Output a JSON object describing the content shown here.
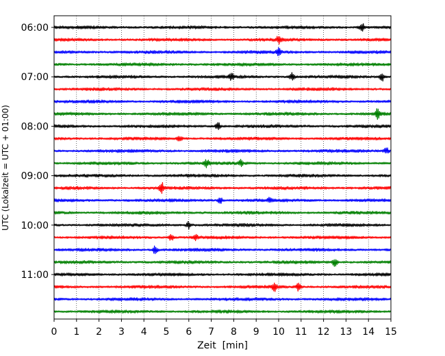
{
  "chart_data": {
    "type": "line",
    "title": "",
    "xlabel": "Zeit  [min]",
    "ylabel": "UTC (Lokalzeit = UTC + 01:00)",
    "xlim": [
      0,
      15
    ],
    "xticks": [
      0,
      1,
      2,
      3,
      4,
      5,
      6,
      7,
      8,
      9,
      10,
      11,
      12,
      13,
      14,
      15
    ],
    "xtick_labels": [
      "0",
      "1",
      "2",
      "3",
      "4",
      "5",
      "6",
      "7",
      "8",
      "9",
      "10",
      "11",
      "12",
      "13",
      "14",
      "15"
    ],
    "ytick_labels": [
      "06:00",
      "07:00",
      "08:00",
      "09:00",
      "10:00",
      "11:00"
    ],
    "trace_count": 24,
    "trace_start": "06:00",
    "trace_interval_min": 15,
    "colors_cycle": [
      "#000000",
      "#ff0000",
      "#0000ff",
      "#008000"
    ],
    "vertical_grid": "dotted",
    "events": [
      {
        "trace": 0,
        "minute": 13.7,
        "amp": 2.2
      },
      {
        "trace": 1,
        "minute": 10.0,
        "amp": 1.6
      },
      {
        "trace": 2,
        "minute": 10.0,
        "amp": 1.8
      },
      {
        "trace": 4,
        "minute": 10.6,
        "amp": 1.7
      },
      {
        "trace": 4,
        "minute": 14.6,
        "amp": 1.9
      },
      {
        "trace": 4,
        "minute": 7.9,
        "amp": 1.3
      },
      {
        "trace": 7,
        "minute": 14.4,
        "amp": 2.3
      },
      {
        "trace": 8,
        "minute": 7.3,
        "amp": 2.0
      },
      {
        "trace": 9,
        "minute": 5.6,
        "amp": 1.3
      },
      {
        "trace": 10,
        "minute": 14.8,
        "amp": 1.5
      },
      {
        "trace": 11,
        "minute": 6.8,
        "amp": 1.6
      },
      {
        "trace": 11,
        "minute": 8.3,
        "amp": 1.4
      },
      {
        "trace": 13,
        "minute": 4.8,
        "amp": 2.4
      },
      {
        "trace": 14,
        "minute": 7.4,
        "amp": 1.6
      },
      {
        "trace": 14,
        "minute": 9.6,
        "amp": 1.3
      },
      {
        "trace": 16,
        "minute": 6.0,
        "amp": 1.5
      },
      {
        "trace": 17,
        "minute": 5.2,
        "amp": 1.6
      },
      {
        "trace": 17,
        "minute": 6.3,
        "amp": 1.4
      },
      {
        "trace": 18,
        "minute": 4.5,
        "amp": 2.2
      },
      {
        "trace": 19,
        "minute": 12.5,
        "amp": 1.8
      },
      {
        "trace": 21,
        "minute": 9.8,
        "amp": 1.9
      },
      {
        "trace": 21,
        "minute": 10.9,
        "amp": 1.9
      }
    ]
  }
}
